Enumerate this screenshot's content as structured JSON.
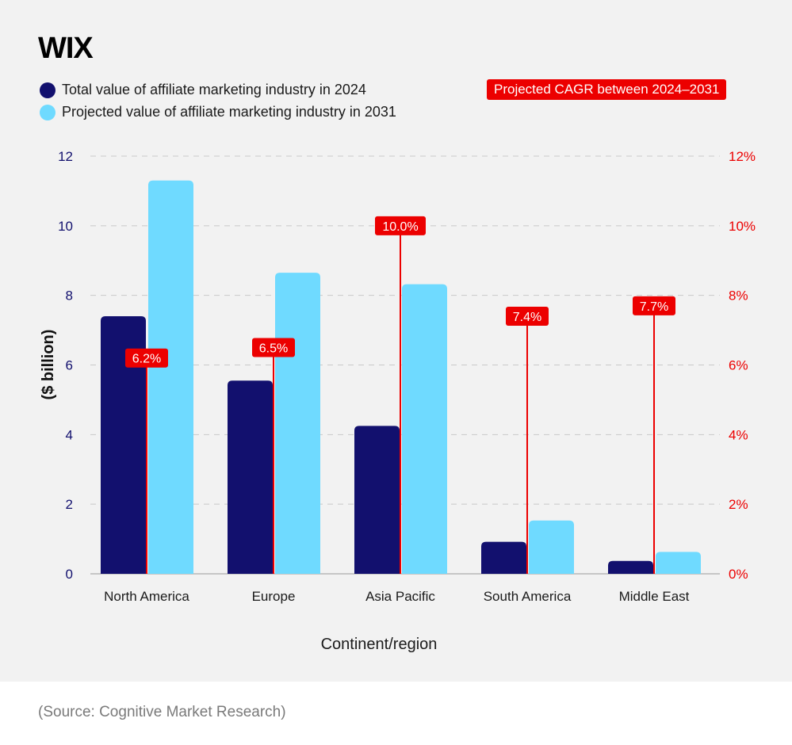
{
  "brand": {
    "logo_text": "WIX"
  },
  "legend": {
    "series_2024": "Total value of affiliate marketing industry in 2024",
    "series_2031": "Projected value of affiliate marketing industry in 2031",
    "cagr_label": "Projected CAGR between 2024–2031"
  },
  "source": "(Source: Cognitive Market Research)",
  "colors": {
    "series_2024": "#12106e",
    "series_2031": "#6fdaff",
    "cagr": "#ec0000",
    "background": "#f2f2f2"
  },
  "chart_data": {
    "type": "bar",
    "title": "",
    "xlabel": "Continent/region",
    "ylabel": "($ billion)",
    "ylim": [
      0,
      12
    ],
    "yticks": [
      0,
      2,
      4,
      6,
      8,
      10,
      12
    ],
    "y2lim": [
      0,
      12
    ],
    "y2ticks": [
      "0%",
      "2%",
      "4%",
      "6%",
      "8%",
      "10%",
      "12%"
    ],
    "categories": [
      "North America",
      "Europe",
      "Asia Pacific",
      "South America",
      "Middle East"
    ],
    "series": [
      {
        "name": "Total value of affiliate marketing industry in 2024",
        "values": [
          7.4,
          5.55,
          4.25,
          0.92,
          0.37
        ]
      },
      {
        "name": "Projected value of affiliate marketing industry in 2031",
        "values": [
          11.3,
          8.65,
          8.32,
          1.53,
          0.63
        ]
      }
    ],
    "cagr": {
      "name": "Projected CAGR between 2024–2031",
      "values": [
        6.2,
        6.5,
        10.0,
        7.4,
        7.7
      ],
      "labels": [
        "6.2%",
        "6.5%",
        "10.0%",
        "7.4%",
        "7.7%"
      ]
    },
    "grid": true
  }
}
